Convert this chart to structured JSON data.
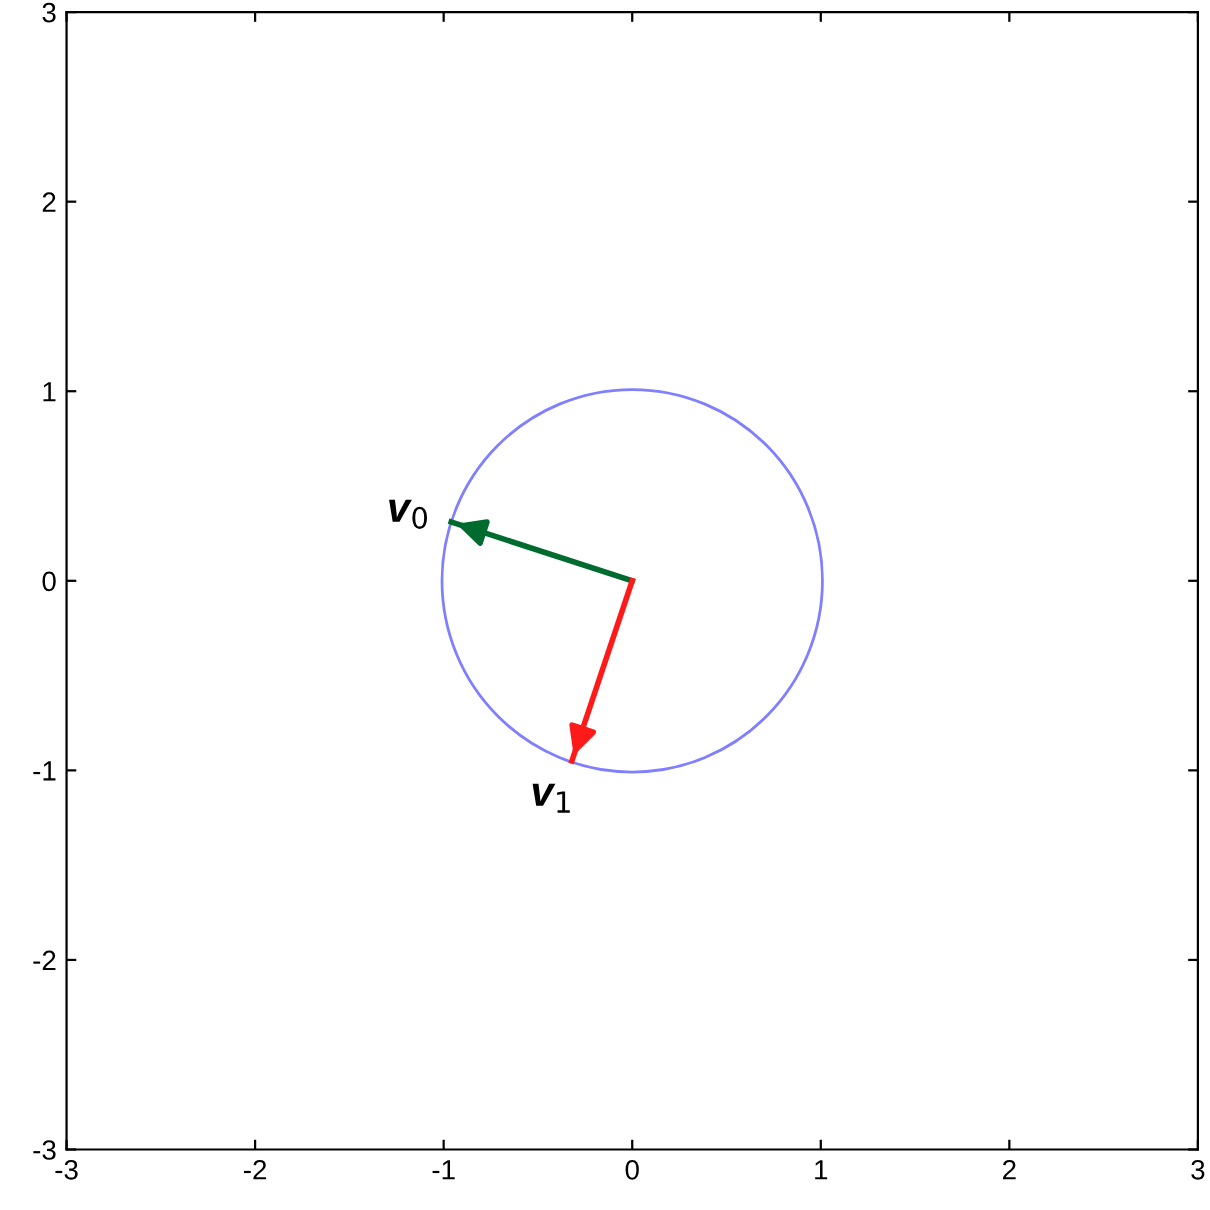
{
  "chart_data": {
    "type": "line",
    "xlim": [
      -3,
      3
    ],
    "ylim": [
      -3,
      3
    ],
    "xticks": [
      -3,
      -2,
      -1,
      0,
      1,
      2,
      3
    ],
    "yticks": [
      -3,
      -2,
      -1,
      0,
      1,
      2,
      3
    ],
    "grid": false,
    "legend": false,
    "marker": "none",
    "line_style": "solid",
    "series": [
      {
        "color": "#006b2e",
        "x": [
          0,
          -0.96
        ],
        "values": [
          0,
          0.31
        ]
      },
      {
        "color": "#ff1a1a",
        "x": [
          0,
          -0.32
        ],
        "values": [
          0,
          -0.95
        ]
      }
    ],
    "annotations": [
      {
        "text": "v$_{0}$",
        "x": -0.96,
        "y": 0.31
      },
      {
        "text": "v$_{1}$",
        "x": -0.32,
        "y": -0.95
      }
    ]
  }
}
